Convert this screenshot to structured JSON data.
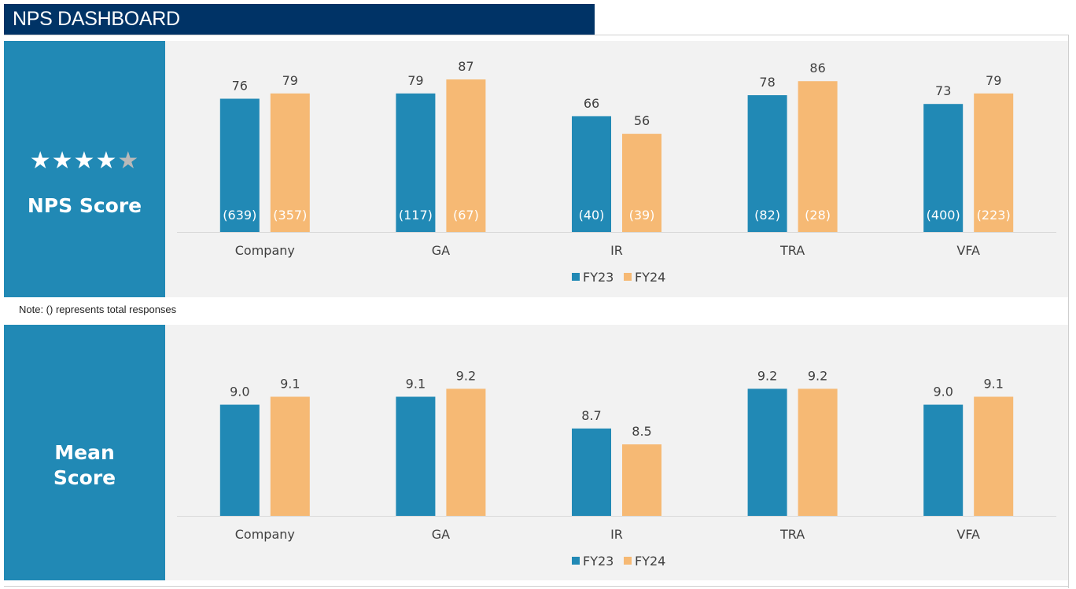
{
  "header": {
    "title": "NPS DASHBOARD"
  },
  "note": "Note: () represents total responses",
  "colors": {
    "fy23": "#2189b5",
    "fy24": "#f6b974",
    "panel": "#2189b5",
    "title_bar": "#003366"
  },
  "panels": {
    "nps": {
      "title": "NPS Score",
      "stars": {
        "filled": 4,
        "total": 5
      }
    },
    "mean": {
      "title_lines": [
        "Mean",
        "Score"
      ]
    }
  },
  "chart_data": [
    {
      "type": "bar",
      "categories": [
        "Company",
        "GA",
        "IR",
        "TRA",
        "VFA"
      ],
      "series": [
        {
          "name": "FY23",
          "values": [
            76,
            79,
            66,
            78,
            73
          ],
          "responses": [
            "(639)",
            "(117)",
            "(40)",
            "(82)",
            "(400)"
          ]
        },
        {
          "name": "FY24",
          "values": [
            79,
            87,
            56,
            86,
            79
          ],
          "responses": [
            "(357)",
            "(67)",
            "(39)",
            "(28)",
            "(223)"
          ]
        }
      ],
      "ylim": [
        0,
        100
      ],
      "legend": "bottom-center",
      "grid": false
    },
    {
      "type": "bar",
      "categories": [
        "Company",
        "GA",
        "IR",
        "TRA",
        "VFA"
      ],
      "series": [
        {
          "name": "FY23",
          "values": [
            "9.0",
            "9.1",
            "8.7",
            "9.2",
            "9.0"
          ]
        },
        {
          "name": "FY24",
          "values": [
            "9.1",
            "9.2",
            "8.5",
            "9.2",
            "9.1"
          ]
        }
      ],
      "ylim": [
        7.6,
        9.6
      ],
      "legend": "bottom-center",
      "grid": false
    }
  ]
}
